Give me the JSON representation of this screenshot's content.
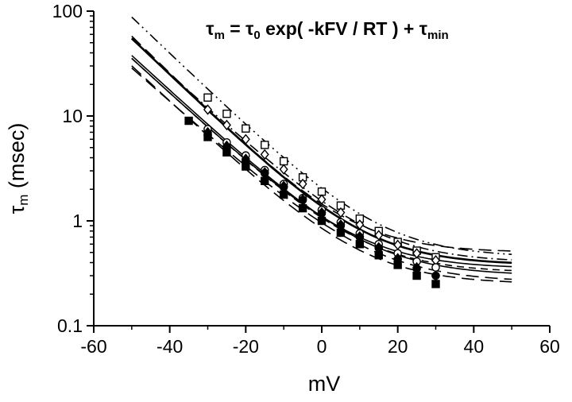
{
  "colors": {
    "background": "#ffffff",
    "axis": "#000000",
    "marker": "#000000",
    "curve": "#000000"
  },
  "equation": {
    "plain": "τm = τ0 exp( -kFV / RT ) + τmin",
    "segments": [
      {
        "t": "τ",
        "sub": false
      },
      {
        "t": "m",
        "sub": true
      },
      {
        "t": " = τ",
        "sub": false
      },
      {
        "t": "0",
        "sub": true
      },
      {
        "t": "   exp( -kFV / RT ) + τ",
        "sub": false
      },
      {
        "t": "min",
        "sub": true
      }
    ]
  },
  "chart_data": {
    "type": "scatter",
    "xlabel": "mV",
    "ylabel_plain": "τm (msec)",
    "ylabel_segments": [
      {
        "t": "τ",
        "sub": false
      },
      {
        "t": "m",
        "sub": true
      },
      {
        "t": " (msec)",
        "sub": false
      }
    ],
    "xlim": [
      -60,
      60
    ],
    "ylim": [
      0.1,
      100
    ],
    "yscale": "log",
    "xticks": [
      -60,
      -40,
      -20,
      0,
      20,
      40,
      60
    ],
    "x_minor_step": 10,
    "yticks": [
      0.1,
      1,
      10,
      100
    ],
    "ytick_labels": [
      "0.1",
      "1",
      "10",
      "100"
    ],
    "grid": false,
    "legend": "none",
    "series": [
      {
        "name": "open-square",
        "marker": "square",
        "filled": false,
        "x": [
          -30,
          -25,
          -20,
          -15,
          -10,
          -5,
          0,
          5,
          10,
          15,
          20,
          25,
          30
        ],
        "y": [
          15,
          10.5,
          7.6,
          5.3,
          3.7,
          2.6,
          1.9,
          1.4,
          1.05,
          0.8,
          0.63,
          0.52,
          0.45
        ]
      },
      {
        "name": "open-diamond",
        "marker": "diamond",
        "filled": false,
        "x": [
          -30,
          -25,
          -20,
          -15,
          -10,
          -5,
          0,
          5,
          10,
          15,
          20,
          25,
          30
        ],
        "y": [
          11.5,
          8.2,
          6.0,
          4.3,
          3.1,
          2.25,
          1.6,
          1.2,
          0.92,
          0.73,
          0.59,
          0.49,
          0.42
        ]
      },
      {
        "name": "open-circle",
        "marker": "circle",
        "filled": false,
        "x": [
          -30,
          -25,
          -20,
          -15,
          -10,
          -5,
          0,
          5,
          10,
          15,
          20,
          25,
          30
        ],
        "y": [
          7.5,
          5.6,
          4.2,
          3.05,
          2.25,
          1.65,
          1.27,
          0.97,
          0.76,
          0.6,
          0.49,
          0.41,
          0.36
        ]
      },
      {
        "name": "filled-square",
        "marker": "square",
        "filled": true,
        "x": [
          -35,
          -30,
          -25,
          -20,
          -15,
          -10,
          -5,
          0,
          5,
          10,
          15,
          20,
          25,
          30
        ],
        "y": [
          9.0,
          6.3,
          4.5,
          3.3,
          2.4,
          1.78,
          1.32,
          1.0,
          0.77,
          0.6,
          0.47,
          0.38,
          0.3,
          0.25
        ]
      },
      {
        "name": "filled-diamond",
        "marker": "diamond",
        "filled": true,
        "x": [
          -30,
          -25,
          -20,
          -15,
          -10,
          -5,
          0,
          5,
          10,
          15,
          20,
          25,
          30
        ],
        "y": [
          7.0,
          5.2,
          3.9,
          2.9,
          2.15,
          1.6,
          1.2,
          0.92,
          0.71,
          0.56,
          0.44,
          0.36,
          0.3
        ]
      },
      {
        "name": "filled-circle",
        "marker": "circle",
        "filled": true,
        "x": [
          -30,
          -25,
          -20,
          -15,
          -10,
          -5,
          0,
          5,
          10,
          15,
          20,
          25,
          30
        ],
        "y": [
          6.6,
          4.95,
          3.75,
          2.85,
          2.1,
          1.58,
          1.18,
          0.9,
          0.7,
          0.55,
          0.43,
          0.35,
          0.3
        ]
      }
    ],
    "fit_curves": [
      {
        "name": "fit-1",
        "tau0": 1.6,
        "slope_mV": 12.5,
        "tau_min": 0.45,
        "line": "dash-dot-dot",
        "width": 1.6
      },
      {
        "name": "fit-2",
        "tau0": 1.15,
        "slope_mV": 13.0,
        "tau_min": 0.4,
        "line": "dash-dot",
        "width": 1.6
      },
      {
        "name": "fit-3",
        "tau0": 1.0,
        "slope_mV": 12.5,
        "tau_min": 0.38,
        "line": "solid",
        "width": 2.6
      },
      {
        "name": "fit-4",
        "tau0": 0.95,
        "slope_mV": 12.2,
        "tau_min": 0.5,
        "line": "long-dash",
        "width": 1.6
      },
      {
        "name": "fit-5",
        "tau0": 0.8,
        "slope_mV": 13.0,
        "tau_min": 0.3,
        "line": "solid",
        "width": 1.6
      },
      {
        "name": "fit-6",
        "tau0": 0.75,
        "slope_mV": 13.0,
        "tau_min": 0.35,
        "line": "solid",
        "width": 1.6
      },
      {
        "name": "fit-7",
        "tau0": 0.75,
        "slope_mV": 13.0,
        "tau_min": 0.32,
        "line": "medium-dash",
        "width": 1.6
      },
      {
        "name": "fit-8",
        "tau0": 0.7,
        "slope_mV": 13.5,
        "tau_min": 0.26,
        "line": "long-dash",
        "width": 1.6
      },
      {
        "name": "fit-9",
        "tau0": 0.6,
        "slope_mV": 12.8,
        "tau_min": 0.25,
        "line": "long-dash",
        "width": 1.6
      }
    ],
    "fit_v_range": [
      -50,
      50
    ]
  }
}
